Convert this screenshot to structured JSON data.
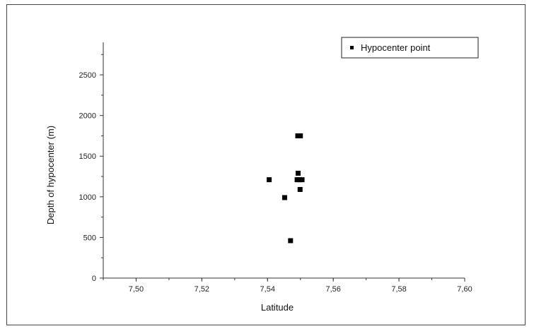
{
  "chart_data": {
    "type": "scatter",
    "xlabel": "Latitude",
    "ylabel": "Depth of hypocenter (m)",
    "xlim": [
      7.49,
      7.6
    ],
    "ylim": [
      0,
      2900
    ],
    "x_ticks": [
      "7,50",
      "7,52",
      "7,54",
      "7,56",
      "7,58",
      "7,60"
    ],
    "x_tick_values": [
      7.5,
      7.52,
      7.54,
      7.56,
      7.58,
      7.6
    ],
    "y_ticks": [
      "0",
      "500",
      "1000",
      "1500",
      "2000",
      "2500"
    ],
    "y_tick_values": [
      0,
      500,
      1000,
      1500,
      2000,
      2500
    ],
    "legend": {
      "position": "top-right",
      "label": "Hypocenter point"
    },
    "series": [
      {
        "name": "Hypocenter point",
        "color": "#000000",
        "marker": "square",
        "points": [
          {
            "x": 7.5405,
            "y": 1210
          },
          {
            "x": 7.5452,
            "y": 990
          },
          {
            "x": 7.547,
            "y": 460
          },
          {
            "x": 7.5492,
            "y": 1750
          },
          {
            "x": 7.55,
            "y": 1750
          },
          {
            "x": 7.5493,
            "y": 1290
          },
          {
            "x": 7.549,
            "y": 1210
          },
          {
            "x": 7.5497,
            "y": 1210
          },
          {
            "x": 7.5505,
            "y": 1210
          },
          {
            "x": 7.5499,
            "y": 1090
          }
        ]
      }
    ]
  }
}
